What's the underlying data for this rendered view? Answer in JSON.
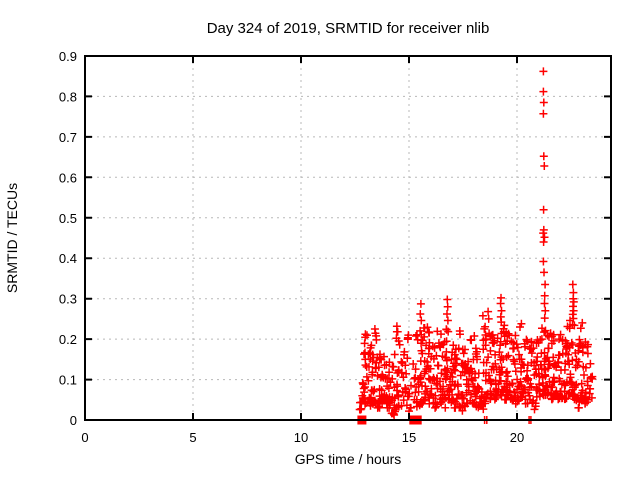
{
  "chart_data": {
    "type": "scatter",
    "title": "Day 324 of 2019, SRMTID for receiver nlib",
    "xlabel": "GPS time / hours",
    "ylabel": "SRMTID / TECUs",
    "xlim": [
      0,
      24.35
    ],
    "ylim": [
      0,
      0.9
    ],
    "xticks": [
      0,
      5,
      10,
      15,
      20
    ],
    "yticks": [
      0,
      0.1,
      0.2,
      0.3,
      0.4,
      0.5,
      0.6,
      0.7,
      0.8,
      0.9
    ],
    "grid": true,
    "legend": "none",
    "marker": "plus",
    "marker_color": "#ff0000",
    "grid_color": "#b8b8b8",
    "axis_color": "#000000",
    "background": "#ffffff",
    "data_x_range": [
      12.7,
      23.5
    ],
    "outlier_points": [
      [
        21.22,
        0.862
      ],
      [
        21.22,
        0.812
      ],
      [
        21.24,
        0.785
      ],
      [
        21.22,
        0.757
      ],
      [
        21.24,
        0.652
      ],
      [
        21.26,
        0.628
      ],
      [
        21.23,
        0.52
      ],
      [
        21.24,
        0.47
      ],
      [
        21.21,
        0.462
      ],
      [
        21.27,
        0.452
      ],
      [
        21.23,
        0.44
      ],
      [
        21.22,
        0.392
      ],
      [
        21.25,
        0.365
      ],
      [
        21.3,
        0.335
      ],
      [
        21.28,
        0.307
      ],
      [
        21.27,
        0.288
      ],
      [
        21.31,
        0.27
      ],
      [
        21.28,
        0.252
      ],
      [
        19.26,
        0.302
      ],
      [
        19.24,
        0.288
      ],
      [
        19.28,
        0.27
      ],
      [
        19.25,
        0.255
      ],
      [
        19.27,
        0.242
      ],
      [
        16.77,
        0.298
      ],
      [
        16.79,
        0.28
      ],
      [
        16.76,
        0.262
      ],
      [
        16.8,
        0.246
      ],
      [
        15.55,
        0.287
      ],
      [
        15.52,
        0.262
      ],
      [
        15.57,
        0.246
      ],
      [
        18.42,
        0.258
      ],
      [
        18.66,
        0.268
      ],
      [
        18.69,
        0.25
      ],
      [
        22.58,
        0.335
      ],
      [
        22.61,
        0.315
      ],
      [
        22.6,
        0.3
      ],
      [
        22.63,
        0.292
      ],
      [
        22.59,
        0.281
      ],
      [
        22.62,
        0.27
      ],
      [
        22.58,
        0.261
      ],
      [
        22.61,
        0.251
      ],
      [
        22.45,
        0.246
      ],
      [
        23.02,
        0.24
      ],
      [
        20.2,
        0.238
      ],
      [
        14.44,
        0.232
      ],
      [
        13.42,
        0.225
      ],
      [
        12.98,
        0.212
      ],
      [
        14.97,
        0.21
      ],
      [
        17.35,
        0.22
      ]
    ],
    "zero_square_points": [
      [
        12.82,
        0
      ],
      [
        15.22,
        0
      ],
      [
        15.38,
        0
      ]
    ],
    "zero_plus_points": [
      [
        18.5,
        0
      ],
      [
        18.6,
        0
      ],
      [
        20.56,
        0
      ],
      [
        20.64,
        0
      ]
    ],
    "cloud_bin_width": 0.2,
    "cloud_seed": 20191120,
    "cloud_bins": [
      [
        12.7,
        10,
        0.025,
        0.095
      ],
      [
        12.9,
        18,
        0.03,
        0.21
      ],
      [
        13.1,
        17,
        0.035,
        0.19
      ],
      [
        13.3,
        17,
        0.04,
        0.22
      ],
      [
        13.5,
        16,
        0.03,
        0.165
      ],
      [
        13.7,
        15,
        0.04,
        0.16
      ],
      [
        13.9,
        14,
        0.03,
        0.145
      ],
      [
        14.1,
        13,
        0.015,
        0.135
      ],
      [
        14.3,
        15,
        0.012,
        0.225
      ],
      [
        14.5,
        14,
        0.03,
        0.2
      ],
      [
        14.7,
        12,
        0.03,
        0.17
      ],
      [
        14.9,
        11,
        0.02,
        0.205
      ],
      [
        15.1,
        5,
        0.05,
        0.14
      ],
      [
        15.3,
        13,
        0.03,
        0.22
      ],
      [
        15.5,
        18,
        0.04,
        0.235
      ],
      [
        15.7,
        18,
        0.05,
        0.23
      ],
      [
        15.9,
        18,
        0.04,
        0.22
      ],
      [
        16.1,
        16,
        0.03,
        0.185
      ],
      [
        16.3,
        16,
        0.04,
        0.22
      ],
      [
        16.5,
        16,
        0.03,
        0.2
      ],
      [
        16.7,
        18,
        0.05,
        0.23
      ],
      [
        16.9,
        16,
        0.04,
        0.185
      ],
      [
        17.1,
        16,
        0.03,
        0.175
      ],
      [
        17.3,
        16,
        0.02,
        0.215
      ],
      [
        17.5,
        14,
        0.03,
        0.18
      ],
      [
        17.7,
        16,
        0.04,
        0.2
      ],
      [
        17.9,
        16,
        0.04,
        0.215
      ],
      [
        18.1,
        14,
        0.03,
        0.175
      ],
      [
        18.3,
        14,
        0.02,
        0.235
      ],
      [
        18.5,
        16,
        0.04,
        0.24
      ],
      [
        18.7,
        16,
        0.05,
        0.215
      ],
      [
        18.9,
        16,
        0.05,
        0.2
      ],
      [
        19.1,
        18,
        0.06,
        0.22
      ],
      [
        19.3,
        18,
        0.05,
        0.235
      ],
      [
        19.5,
        18,
        0.06,
        0.215
      ],
      [
        19.7,
        16,
        0.05,
        0.2
      ],
      [
        19.9,
        16,
        0.04,
        0.215
      ],
      [
        20.1,
        16,
        0.05,
        0.235
      ],
      [
        20.3,
        14,
        0.04,
        0.2
      ],
      [
        20.5,
        14,
        0.05,
        0.195
      ],
      [
        20.7,
        14,
        0.02,
        0.18
      ],
      [
        20.9,
        16,
        0.05,
        0.2
      ],
      [
        21.1,
        18,
        0.06,
        0.235
      ],
      [
        21.3,
        18,
        0.06,
        0.225
      ],
      [
        21.5,
        16,
        0.05,
        0.215
      ],
      [
        21.7,
        16,
        0.06,
        0.2
      ],
      [
        21.9,
        16,
        0.05,
        0.215
      ],
      [
        22.1,
        16,
        0.05,
        0.2
      ],
      [
        22.3,
        16,
        0.06,
        0.235
      ],
      [
        22.5,
        18,
        0.05,
        0.24
      ],
      [
        22.7,
        16,
        0.03,
        0.2
      ],
      [
        22.9,
        16,
        0.05,
        0.23
      ],
      [
        23.1,
        16,
        0.04,
        0.195
      ],
      [
        23.3,
        8,
        0.05,
        0.14
      ]
    ]
  }
}
